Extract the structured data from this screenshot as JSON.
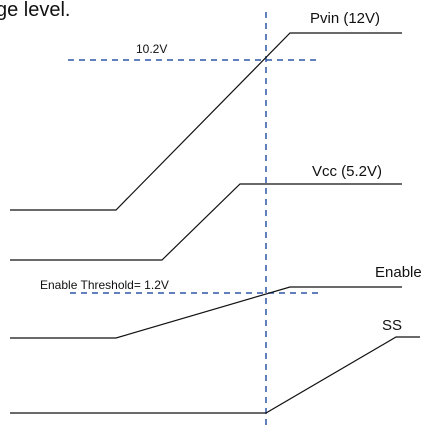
{
  "caption_fragment": "ge level.",
  "signals": [
    {
      "id": "pvin",
      "label": "Pvin (12V)"
    },
    {
      "id": "vcc",
      "label": "Vcc (5.2V)"
    },
    {
      "id": "enable",
      "label": "Enable"
    },
    {
      "id": "ss",
      "label": "SS"
    }
  ],
  "annotations": {
    "pvin_level": "10.2V",
    "enable_threshold": "Enable Threshold= 1.2V"
  },
  "colors": {
    "trace": "#111111",
    "guide": "#2f56a6",
    "text": "#111111"
  }
}
